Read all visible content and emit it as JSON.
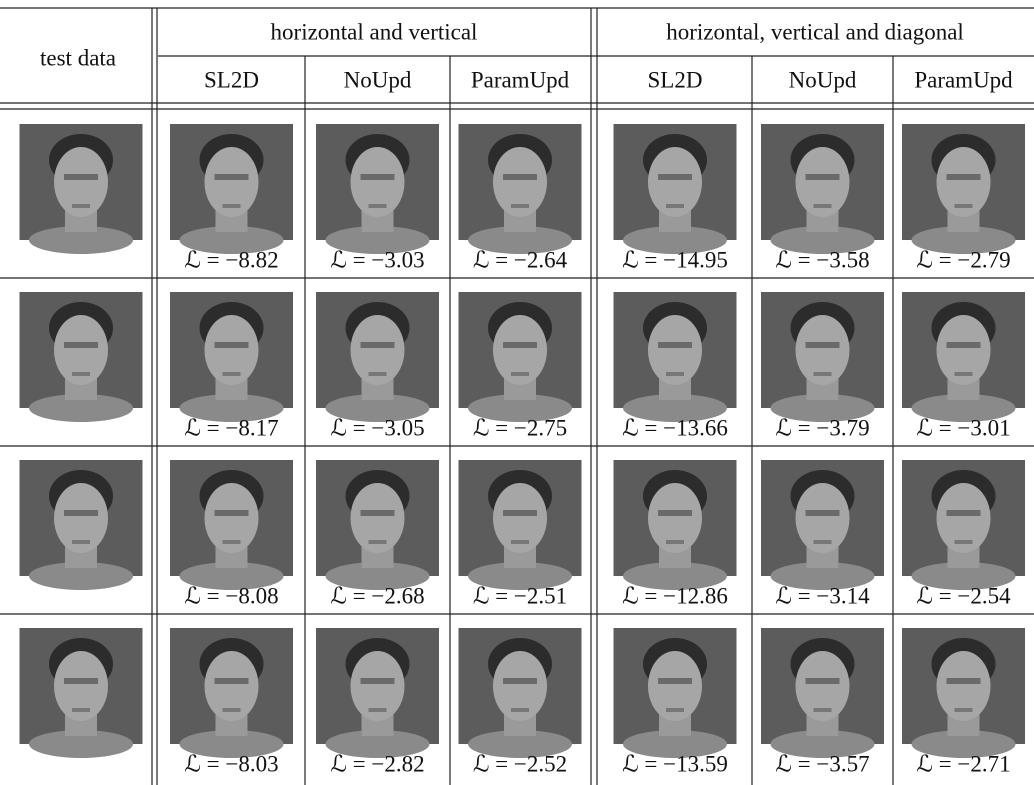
{
  "header": {
    "row_label": "test data",
    "groups": [
      "horizontal and vertical",
      "horizontal, vertical and diagonal"
    ],
    "columns": [
      "SL2D",
      "NoUpd",
      "ParamUpd",
      "SL2D",
      "NoUpd",
      "ParamUpd"
    ]
  },
  "table": {
    "rows": [
      [
        "ℒ = −8.82",
        "ℒ = −3.03",
        "ℒ = −2.64",
        "ℒ = −14.95",
        "ℒ = −3.58",
        "ℒ = −2.79"
      ],
      [
        "ℒ = −8.17",
        "ℒ = −3.05",
        "ℒ = −2.75",
        "ℒ = −13.66",
        "ℒ = −3.79",
        "ℒ = −3.01"
      ],
      [
        "ℒ = −8.08",
        "ℒ = −2.68",
        "ℒ = −2.51",
        "ℒ = −12.86",
        "ℒ = −3.14",
        "ℒ = −2.54"
      ],
      [
        "ℒ = −8.03",
        "ℒ = −2.82",
        "ℒ = −2.52",
        "ℒ = −13.59",
        "ℒ = −3.57",
        "ℒ = −2.71"
      ]
    ]
  }
}
